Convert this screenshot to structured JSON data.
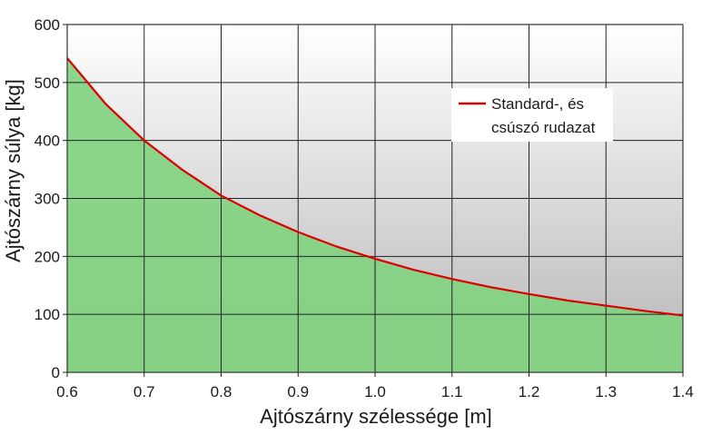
{
  "chart_data": {
    "type": "area",
    "xlabel": "Ajtószárny szélessége [m]",
    "ylabel": "Ajtószárny súlya [kg]",
    "xlim": [
      0.6,
      1.4
    ],
    "ylim": [
      0,
      600
    ],
    "xticks": [
      "0.6",
      "0.7",
      "0.8",
      "0.9",
      "1.0",
      "1.1",
      "1.2",
      "1.3",
      "1.4"
    ],
    "yticks": [
      "0",
      "100",
      "200",
      "300",
      "400",
      "500",
      "600"
    ],
    "grid": true,
    "legend_position": "top-right",
    "series": [
      {
        "name": "Standard-, és csúszó rudazat",
        "color": "#dd0000",
        "fill_color": "#7fd37f",
        "x": [
          0.6,
          0.65,
          0.7,
          0.75,
          0.8,
          0.85,
          0.9,
          0.95,
          1.0,
          1.05,
          1.1,
          1.15,
          1.2,
          1.25,
          1.3,
          1.35,
          1.4
        ],
        "values": [
          542,
          463,
          400,
          349,
          305,
          271,
          242,
          217,
          196,
          177,
          161,
          147,
          135,
          124,
          115,
          106,
          98
        ]
      }
    ],
    "legend": {
      "line1": "Standard-, és",
      "line2": "csúszó rudazat"
    }
  }
}
